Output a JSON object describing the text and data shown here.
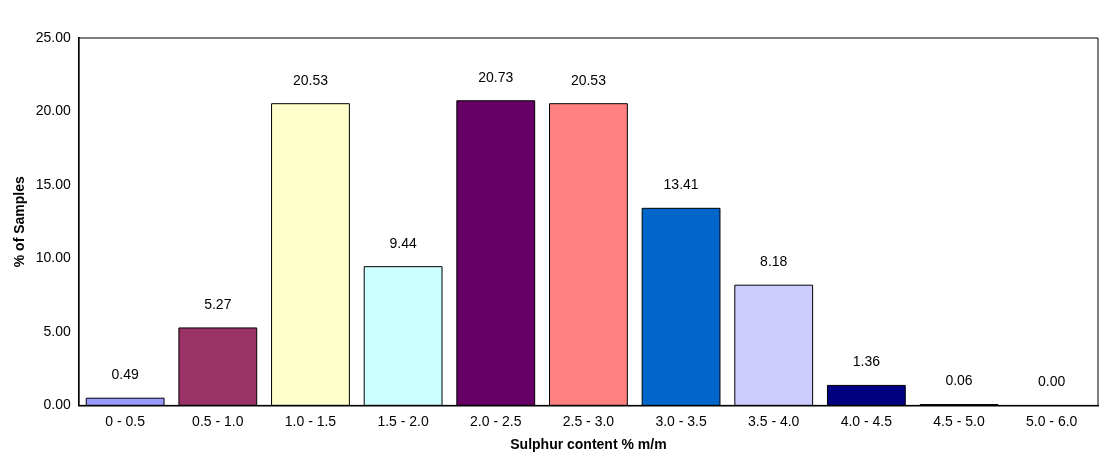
{
  "chart_data": {
    "type": "bar",
    "xlabel": "Sulphur content % m/m",
    "ylabel": "% of Samples",
    "categories": [
      "0 - 0.5",
      "0.5 - 1.0",
      "1.0 - 1.5",
      "1.5 - 2.0",
      "2.0 - 2.5",
      "2.5 - 3.0",
      "3.0 - 3.5",
      "3.5 - 4.0",
      "4.0 - 4.5",
      "4.5 - 5.0",
      "5.0 - 6.0"
    ],
    "values": [
      0.49,
      5.27,
      20.53,
      9.44,
      20.73,
      20.53,
      13.41,
      8.18,
      1.36,
      0.06,
      0.0
    ],
    "colors": [
      "#9999ff",
      "#993366",
      "#ffffcc",
      "#ccffff",
      "#660066",
      "#ff8080",
      "#0066cc",
      "#ccccff",
      "#000080",
      "#ff00ff",
      "#ffff00"
    ],
    "value_labels": [
      "0.49",
      "5.27",
      "20.53",
      "9.44",
      "20.73",
      "20.53",
      "13.41",
      "8.18",
      "1.36",
      "0.06",
      "0.00"
    ],
    "ylim": [
      0,
      25
    ],
    "yticks": [
      {
        "value": 0,
        "label": "0.00"
      },
      {
        "value": 5,
        "label": "5.00"
      },
      {
        "value": 10,
        "label": "10.00"
      },
      {
        "value": 15,
        "label": "15.00"
      },
      {
        "value": 20,
        "label": "20.00"
      },
      {
        "value": 25,
        "label": "25.00"
      }
    ],
    "grid": false,
    "legend": false
  }
}
